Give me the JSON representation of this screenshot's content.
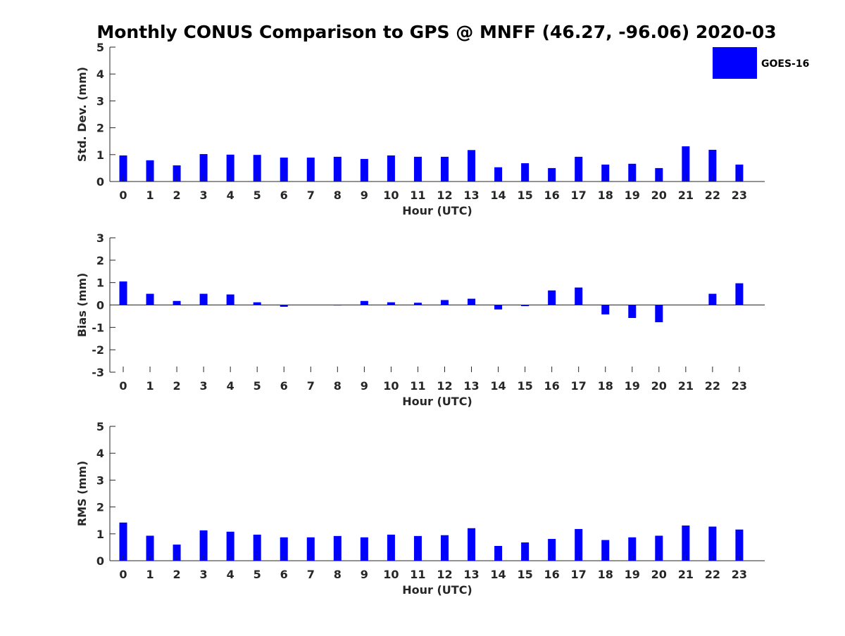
{
  "colors": {
    "bar": "#0000ff",
    "axis": "#262626",
    "background": "#ffffff"
  },
  "title": "Monthly CONUS Comparison to GPS @ MNFF (46.27, -96.06) 2020-03",
  "legend": {
    "label": "GOES-16",
    "placement": "top-right"
  },
  "chart_data": [
    {
      "type": "bar",
      "xlabel": "Hour (UTC)",
      "ylabel": "Std. Dev. (mm)",
      "ylim": [
        0,
        5
      ],
      "yticks": [
        0,
        1,
        2,
        3,
        4,
        5
      ],
      "categories": [
        0,
        1,
        2,
        3,
        4,
        5,
        6,
        7,
        8,
        9,
        10,
        11,
        12,
        13,
        14,
        15,
        16,
        17,
        18,
        19,
        20,
        21,
        22,
        23
      ],
      "series": [
        {
          "name": "GOES-16",
          "values": [
            0.97,
            0.79,
            0.6,
            1.02,
            1.0,
            0.99,
            0.89,
            0.89,
            0.92,
            0.84,
            0.97,
            0.92,
            0.92,
            1.17,
            0.53,
            0.68,
            0.5,
            0.92,
            0.63,
            0.66,
            0.5,
            1.31,
            1.18,
            0.63
          ]
        }
      ],
      "grid": false
    },
    {
      "type": "bar",
      "xlabel": "Hour (UTC)",
      "ylabel": "Bias (mm)",
      "ylim": [
        -3,
        3
      ],
      "yticks": [
        -3,
        -2,
        -1,
        0,
        1,
        2,
        3
      ],
      "categories": [
        0,
        1,
        2,
        3,
        4,
        5,
        6,
        7,
        8,
        9,
        10,
        11,
        12,
        13,
        14,
        15,
        16,
        17,
        18,
        19,
        20,
        21,
        22,
        23
      ],
      "series": [
        {
          "name": "GOES-16",
          "values": [
            1.05,
            0.5,
            0.18,
            0.5,
            0.47,
            0.12,
            -0.08,
            0.0,
            -0.02,
            0.18,
            0.12,
            0.1,
            0.22,
            0.28,
            -0.2,
            -0.05,
            0.65,
            0.78,
            -0.42,
            -0.58,
            -0.77,
            0.0,
            0.5,
            0.97
          ]
        }
      ],
      "grid": false
    },
    {
      "type": "bar",
      "xlabel": "Hour (UTC)",
      "ylabel": "RMS (mm)",
      "ylim": [
        0,
        5
      ],
      "yticks": [
        0,
        1,
        2,
        3,
        4,
        5
      ],
      "categories": [
        0,
        1,
        2,
        3,
        4,
        5,
        6,
        7,
        8,
        9,
        10,
        11,
        12,
        13,
        14,
        15,
        16,
        17,
        18,
        19,
        20,
        21,
        22,
        23
      ],
      "series": [
        {
          "name": "GOES-16",
          "values": [
            1.42,
            0.93,
            0.6,
            1.13,
            1.08,
            0.97,
            0.87,
            0.87,
            0.92,
            0.87,
            0.97,
            0.92,
            0.95,
            1.21,
            0.55,
            0.68,
            0.81,
            1.18,
            0.77,
            0.87,
            0.93,
            1.31,
            1.27,
            1.16
          ]
        }
      ],
      "grid": false
    }
  ]
}
